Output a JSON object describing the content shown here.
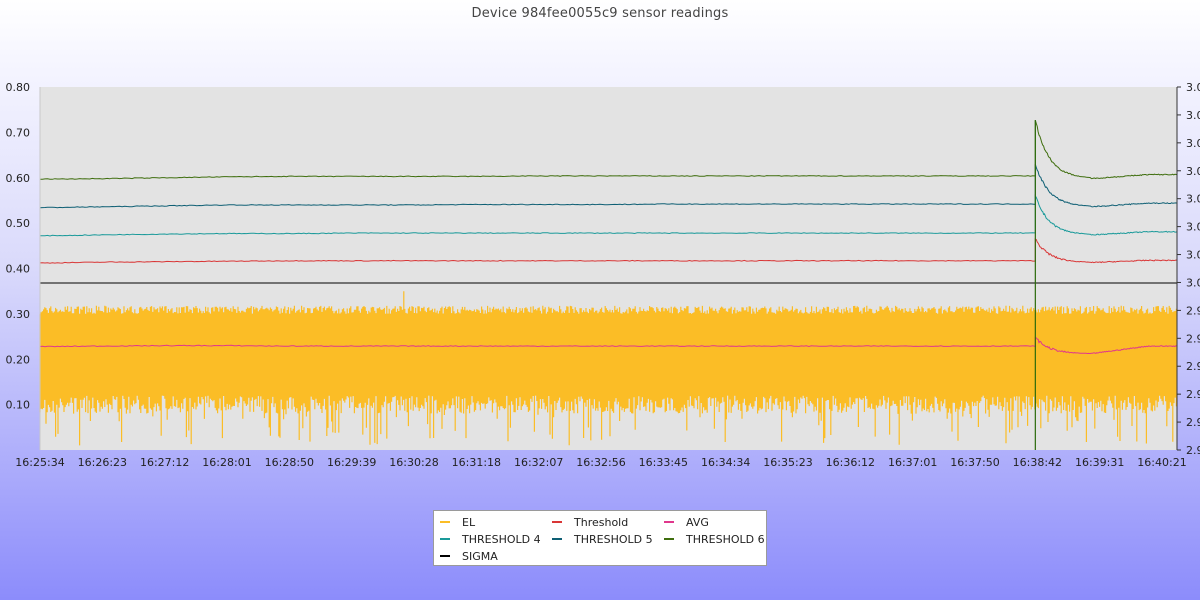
{
  "chart_data": {
    "type": "line",
    "title": "Device 984fee0055c9 sensor readings",
    "x_ticks": [
      "16:25:34",
      "16:26:23",
      "16:27:12",
      "16:28:01",
      "16:28:50",
      "16:29:39",
      "16:30:28",
      "16:31:18",
      "16:32:07",
      "16:32:56",
      "16:33:45",
      "16:34:34",
      "16:35:23",
      "16:36:12",
      "16:37:01",
      "16:37:50",
      "16:38:42",
      "16:39:31",
      "16:40:21"
    ],
    "y_left": {
      "ticks": [
        "0.80",
        "0.70",
        "0.60",
        "0.50",
        "0.40",
        "0.30",
        "0.20",
        "0.10"
      ],
      "ylim": [
        0.0,
        0.8
      ]
    },
    "y_right": {
      "ticks": [
        "3.0",
        "3.0",
        "3.0",
        "3.0",
        "3.0",
        "3.0",
        "3.0",
        "3.0",
        "2.9",
        "2.9",
        "2.9",
        "2.9",
        "2.9",
        "2.9"
      ]
    },
    "event_time": "16:38:42",
    "grid": false,
    "background": "#e3e3e3",
    "series": [
      {
        "name": "EL",
        "color": "#fbbd26",
        "kind": "band",
        "upper": 0.3,
        "lower_typical": 0.12,
        "lower_min": 0.01,
        "spike_max": 0.35
      },
      {
        "name": "Threshold",
        "color": "#d93636",
        "values": [
          0.412,
          0.414,
          0.415,
          0.416,
          0.417,
          0.417,
          0.417,
          0.417,
          0.417,
          0.417,
          0.417,
          0.417,
          0.417,
          0.417,
          0.417,
          0.417,
          0.417,
          0.418,
          0.418
        ],
        "peak_after_event": 0.465,
        "dip_after_event": 0.413
      },
      {
        "name": "AVG",
        "color": "#e0378c",
        "values": [
          0.228,
          0.229,
          0.23,
          0.23,
          0.229,
          0.229,
          0.229,
          0.229,
          0.229,
          0.229,
          0.229,
          0.229,
          0.229,
          0.229,
          0.229,
          0.229,
          0.229,
          0.23,
          0.229
        ],
        "peak_after_event": 0.248,
        "dip_after_event": 0.212
      },
      {
        "name": "THRESHOLD 4",
        "color": "#1a9a9a",
        "values": [
          0.472,
          0.474,
          0.476,
          0.477,
          0.477,
          0.478,
          0.478,
          0.478,
          0.478,
          0.478,
          0.478,
          0.478,
          0.478,
          0.478,
          0.478,
          0.478,
          0.478,
          0.48,
          0.481
        ],
        "peak_after_event": 0.56,
        "dip_after_event": 0.474
      },
      {
        "name": "THRESHOLD 5",
        "color": "#0e5f74",
        "values": [
          0.534,
          0.536,
          0.538,
          0.54,
          0.54,
          0.54,
          0.54,
          0.541,
          0.541,
          0.541,
          0.542,
          0.542,
          0.542,
          0.542,
          0.542,
          0.542,
          0.542,
          0.543,
          0.544
        ],
        "peak_after_event": 0.63,
        "dip_after_event": 0.536
      },
      {
        "name": "THRESHOLD 6",
        "color": "#3f6e0e",
        "values": [
          0.597,
          0.598,
          0.6,
          0.602,
          0.603,
          0.603,
          0.603,
          0.603,
          0.604,
          0.604,
          0.604,
          0.604,
          0.604,
          0.604,
          0.604,
          0.604,
          0.604,
          0.605,
          0.607
        ],
        "peak_after_event": 0.727,
        "dip_after_event": 0.598
      },
      {
        "name": "SIGMA",
        "color": "#000000",
        "values": [
          0.368,
          0.368,
          0.368,
          0.368,
          0.368,
          0.368,
          0.368,
          0.368,
          0.368,
          0.368,
          0.368,
          0.368,
          0.368,
          0.368,
          0.368,
          0.368,
          0.368,
          0.368,
          0.368
        ]
      }
    ],
    "legend": {
      "position": "bottom-center",
      "columns": 3
    }
  },
  "legend_items": [
    {
      "label": "EL",
      "color": "#fbbd26"
    },
    {
      "label": "Threshold",
      "color": "#d93636"
    },
    {
      "label": "AVG",
      "color": "#e0378c"
    },
    {
      "label": "THRESHOLD 4",
      "color": "#1a9a9a"
    },
    {
      "label": "THRESHOLD 5",
      "color": "#0e5f74"
    },
    {
      "label": "THRESHOLD 6",
      "color": "#3f6e0e"
    },
    {
      "label": "SIGMA",
      "color": "#000000"
    }
  ]
}
